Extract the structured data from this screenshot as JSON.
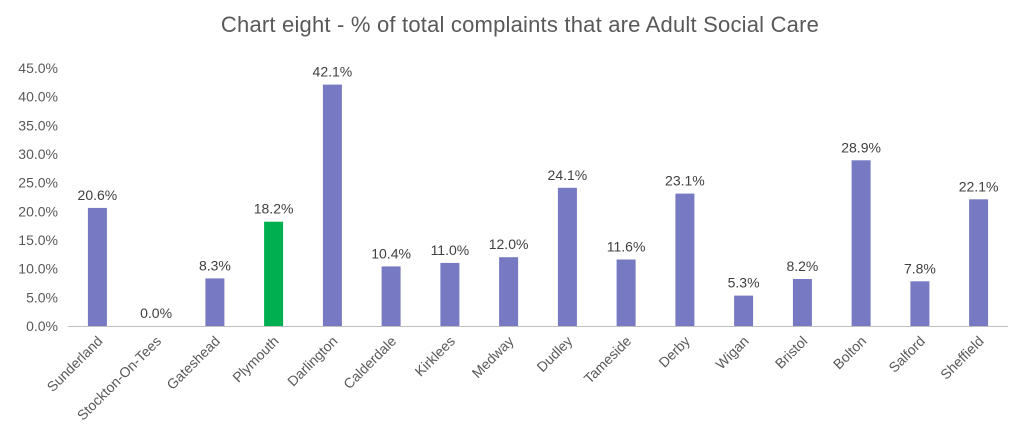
{
  "chart_data": {
    "type": "bar",
    "title": "Chart eight - % of total complaints that are Adult Social Care",
    "xlabel": "",
    "ylabel": "",
    "ylim": [
      0,
      45
    ],
    "y_ticks": [
      "0.0%",
      "5.0%",
      "10.0%",
      "15.0%",
      "20.0%",
      "25.0%",
      "30.0%",
      "35.0%",
      "40.0%",
      "45.0%"
    ],
    "y_tick_values": [
      0,
      5,
      10,
      15,
      20,
      25,
      30,
      35,
      40,
      45
    ],
    "grid": false,
    "legend": "none",
    "categories": [
      "Sunderland",
      "Stockton-On-Tees",
      "Gateshead",
      "Plymouth",
      "Darlington",
      "Calderdale",
      "Kirklees",
      "Medway",
      "Dudley",
      "Tameside",
      "Derby",
      "Wigan",
      "Bristol",
      "Bolton",
      "Salford",
      "Sheffield"
    ],
    "values": [
      20.6,
      0.0,
      8.3,
      18.2,
      42.1,
      10.4,
      11.0,
      12.0,
      24.1,
      11.6,
      23.1,
      5.3,
      8.2,
      28.9,
      7.8,
      22.1
    ],
    "data_labels": [
      "20.6%",
      "0.0%",
      "8.3%",
      "18.2%",
      "42.1%",
      "10.4%",
      "11.0%",
      "12.0%",
      "24.1%",
      "11.6%",
      "23.1%",
      "5.3%",
      "8.2%",
      "28.9%",
      "7.8%",
      "22.1%"
    ],
    "highlight_category": "Plymouth",
    "colors": {
      "bar": "#7779C2",
      "highlight": "#00B050",
      "axis": "#BFBFBF"
    }
  }
}
